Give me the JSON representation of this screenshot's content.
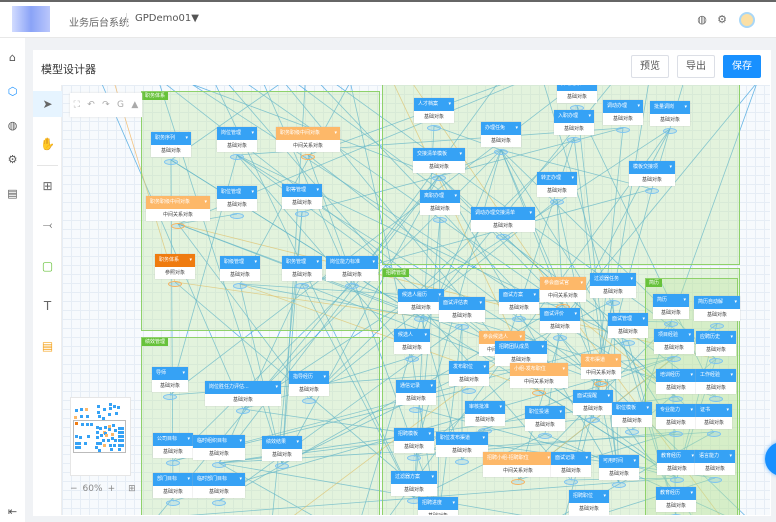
{
  "header": {
    "app_title": "业务后台系统",
    "project": "GPDemo01",
    "project_caret": "▼",
    "icons": [
      "globe-icon",
      "gear-icon",
      "avatar"
    ]
  },
  "sidebar": {
    "items": [
      {
        "icon": "home-icon",
        "glyph": "⌂"
      },
      {
        "icon": "cube-icon",
        "glyph": "⬡",
        "active": true
      },
      {
        "icon": "globe-icon",
        "glyph": "◍"
      },
      {
        "icon": "gear-icon",
        "glyph": "⚙"
      },
      {
        "icon": "list-icon",
        "glyph": "▤"
      }
    ],
    "collapse_glyph": "⇤"
  },
  "page": {
    "title": "模型设计器",
    "buttons": {
      "preview": "预览",
      "export": "导出",
      "save": "保存"
    }
  },
  "tools": [
    {
      "name": "select-tool",
      "glyph": "➤"
    },
    {
      "name": "hand-tool",
      "glyph": "✋"
    },
    {
      "name": "entity-tool",
      "glyph": "⊞"
    },
    {
      "name": "connector-tool",
      "glyph": "⤙"
    },
    {
      "name": "group-tool",
      "glyph": "▢"
    },
    {
      "name": "text-tool",
      "glyph": "T"
    },
    {
      "name": "note-tool",
      "glyph": "▤"
    }
  ],
  "history": [
    "⛶",
    "↶",
    "↷",
    "G",
    "▲"
  ],
  "zoom": {
    "level": "60%",
    "minus": "−",
    "plus": "+",
    "fit": "⊞"
  },
  "colors": {
    "accent": "#1890ff",
    "entity": "#36a2f5",
    "intermediate": "#fdb869",
    "reference": "#ef7b10",
    "group": "#67c23a",
    "link": "#3aa0dd"
  },
  "groups": [
    {
      "label": "职务体系"
    },
    {
      "label": ""
    },
    {
      "label": "绩效管理"
    },
    {
      "label": "招聘管理"
    },
    {
      "label": "简历"
    }
  ],
  "nodes": [
    {
      "name": "职务序列",
      "type": "基础对象"
    },
    {
      "name": "岗位管理",
      "type": "基础对象"
    },
    {
      "name": "职务职级中间对象",
      "type": "中间关系对象",
      "kind": "mid"
    },
    {
      "name": "职位管理",
      "type": "基础对象"
    },
    {
      "name": "职等管理",
      "type": "基础对象"
    },
    {
      "name": "职务职级中间对象",
      "type": "中间关系对象",
      "kind": "mid"
    },
    {
      "name": "职务体系",
      "type": "参照对象",
      "kind": "ref"
    },
    {
      "name": "职级管理",
      "type": "基础对象"
    },
    {
      "name": "职务管理",
      "type": "基础对象"
    },
    {
      "name": "岗位能力标准",
      "type": "基础对象"
    },
    {
      "name": "异动记录",
      "type": "基础对象"
    },
    {
      "name": "人才档案",
      "type": "基础对象"
    },
    {
      "name": "调动办理",
      "type": "基础对象"
    },
    {
      "name": "批量调岗",
      "type": "基础对象"
    },
    {
      "name": "入职办理",
      "type": "基础对象"
    },
    {
      "name": "办理任免",
      "type": "基础对象"
    },
    {
      "name": "交接清单模板",
      "type": "基础对象"
    },
    {
      "name": "模板交接项",
      "type": "基础对象"
    },
    {
      "name": "转正办理",
      "type": "基础对象"
    },
    {
      "name": "离职办理",
      "type": "基础对象"
    },
    {
      "name": "调动办理交接清单",
      "type": "基础对象"
    },
    {
      "name": "导师",
      "type": "基础对象"
    },
    {
      "name": "岗位胜任力评估...",
      "type": "基础对象"
    },
    {
      "name": "指导经历",
      "type": "基础对象"
    },
    {
      "name": "公司目标",
      "type": "基础对象"
    },
    {
      "name": "临时组织目标",
      "type": "基础对象"
    },
    {
      "name": "绩效结果",
      "type": "基础对象"
    },
    {
      "name": "部门目标",
      "type": "基础对象"
    },
    {
      "name": "临时部门目标",
      "type": "基础对象"
    },
    {
      "name": "候选人履历",
      "type": "基础对象"
    },
    {
      "name": "面试评估表",
      "type": "基础对象"
    },
    {
      "name": "面试方案",
      "type": "基础对象"
    },
    {
      "name": "参会面试官",
      "type": "中间关系对象",
      "kind": "mid"
    },
    {
      "name": "过滤器任务",
      "type": "基础对象"
    },
    {
      "name": "面试评价",
      "type": "基础对象"
    },
    {
      "name": "面试管理",
      "type": "基础对象"
    },
    {
      "name": "候选人",
      "type": "基础对象"
    },
    {
      "name": "参会候选人",
      "type": "中间关系对象",
      "kind": "mid"
    },
    {
      "name": "招聘团队成员",
      "type": "基础对象"
    },
    {
      "name": "发布渠道",
      "type": "中间关系对象",
      "kind": "mid"
    },
    {
      "name": "小组-发布职位",
      "type": "中间关系对象",
      "kind": "mid"
    },
    {
      "name": "发布职位",
      "type": "基础对象"
    },
    {
      "name": "通信记录",
      "type": "基础对象"
    },
    {
      "name": "面试提醒",
      "type": "基础对象"
    },
    {
      "name": "职位模板",
      "type": "基础对象"
    },
    {
      "name": "审核批准",
      "type": "基础对象"
    },
    {
      "name": "职位投递",
      "type": "基础对象"
    },
    {
      "name": "招聘模板",
      "type": "基础对象"
    },
    {
      "name": "职位发布渠道",
      "type": "基础对象"
    },
    {
      "name": "招聘小组-招聘职位",
      "type": "中间关系对象",
      "kind": "mid"
    },
    {
      "name": "面试记录",
      "type": "基础对象"
    },
    {
      "name": "可用时间",
      "type": "基础对象"
    },
    {
      "name": "过滤器方案",
      "type": "基础对象"
    },
    {
      "name": "招聘进度",
      "type": "基础对象"
    },
    {
      "name": "招聘职位",
      "type": "基础对象"
    },
    {
      "name": "简历",
      "type": "基础对象"
    },
    {
      "name": "简历自动解",
      "type": "基础对象"
    },
    {
      "name": "项目经验",
      "type": "基础对象"
    },
    {
      "name": "应聘历史",
      "type": "基础对象"
    },
    {
      "name": "培训经历",
      "type": "基础对象"
    },
    {
      "name": "工作经验",
      "type": "基础对象"
    },
    {
      "name": "专业能力",
      "type": "基础对象"
    },
    {
      "name": "证书",
      "type": "基础对象"
    },
    {
      "name": "教育经历",
      "type": "基础对象"
    },
    {
      "name": "语言能力",
      "type": "基础对象"
    },
    {
      "name": "教育经历",
      "type": "基础对象"
    }
  ]
}
